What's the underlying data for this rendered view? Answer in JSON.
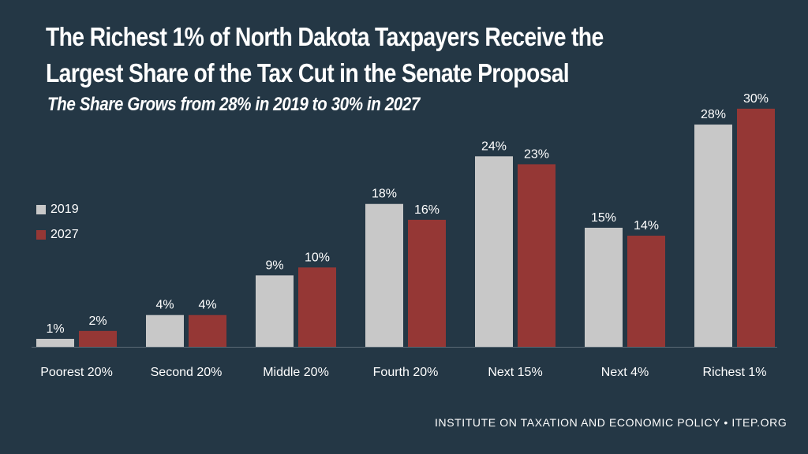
{
  "header": {
    "title_line1": "The Richest 1% of North Dakota Taxpayers Receive the",
    "title_line2": "Largest Share of the Tax Cut in the Senate Proposal",
    "subtitle": "The Share Grows from 28% in 2019 to 30% in 2027"
  },
  "legend": {
    "items": [
      {
        "label": "2019",
        "color": "#c8c8c8"
      },
      {
        "label": "2027",
        "color": "#953735"
      }
    ]
  },
  "footer": {
    "source": "INSTITUTE ON TAXATION AND ECONOMIC POLICY • ITEP.ORG"
  },
  "chart_data": {
    "type": "bar",
    "title": "The Richest 1% of North Dakota Taxpayers Receive the Largest Share of the Tax Cut in the Senate Proposal",
    "subtitle": "The Share Grows from 28% in 2019 to 30% in 2027",
    "categories": [
      "Poorest 20%",
      "Second 20%",
      "Middle 20%",
      "Fourth 20%",
      "Next 15%",
      "Next 4%",
      "Richest 1%"
    ],
    "series": [
      {
        "name": "2019",
        "color": "#c8c8c8",
        "values": [
          1,
          4,
          9,
          18,
          24,
          15,
          28
        ],
        "labels": [
          "1%",
          "4%",
          "9%",
          "18%",
          "24%",
          "15%",
          "28%"
        ]
      },
      {
        "name": "2027",
        "color": "#953735",
        "values": [
          2,
          4,
          10,
          16,
          23,
          14,
          30
        ],
        "labels": [
          "2%",
          "4%",
          "10%",
          "16%",
          "23%",
          "14%",
          "30%"
        ]
      }
    ],
    "xlabel": "",
    "ylabel": "",
    "ylim": [
      0,
      30
    ],
    "grid": false,
    "legend_position": "left"
  }
}
